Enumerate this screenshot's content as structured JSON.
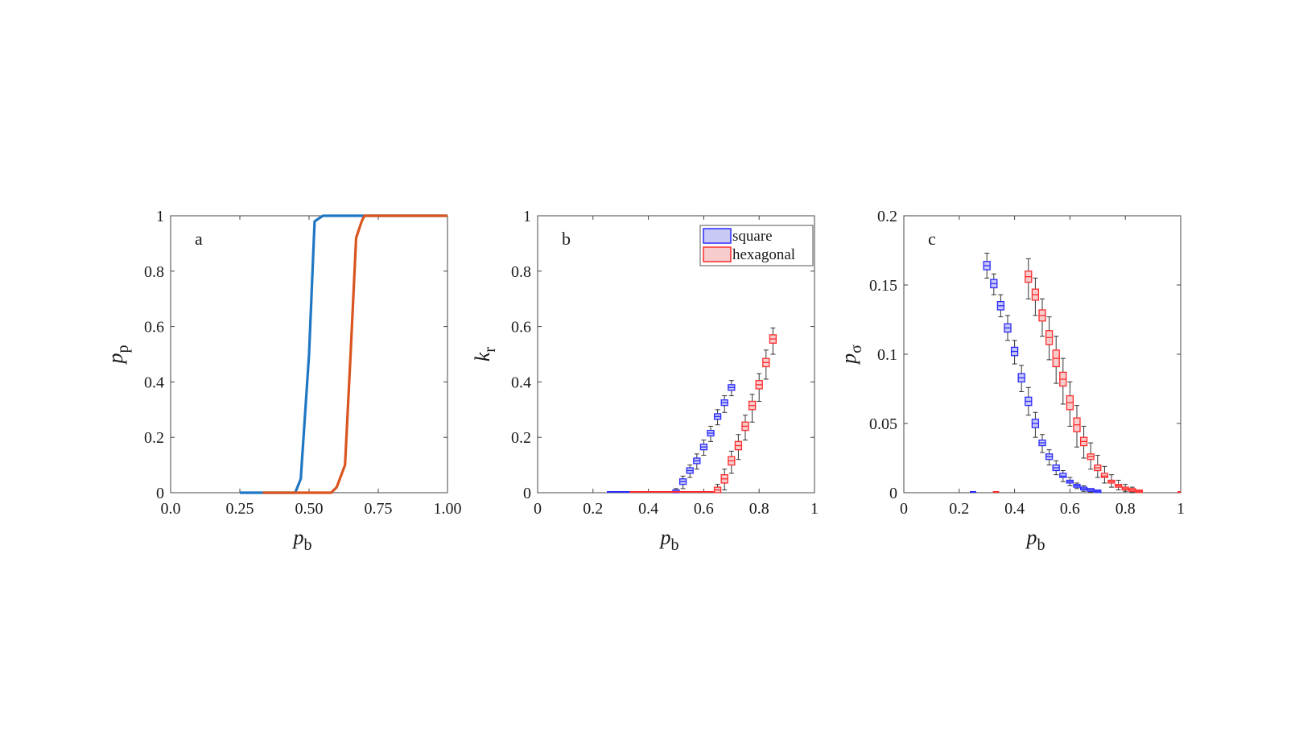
{
  "chart_data": [
    {
      "panel": "a",
      "type": "line",
      "title": "",
      "xlabel": {
        "main": "p",
        "sub": "b"
      },
      "ylabel": {
        "main": "p",
        "sub": "p"
      },
      "xlim": [
        0,
        1
      ],
      "ylim": [
        0,
        1
      ],
      "xticks": [
        0,
        0.25,
        0.5,
        0.75,
        1
      ],
      "xtick_labels": [
        "0.0",
        "0.25",
        "0.50",
        "0.75",
        "1.00"
      ],
      "yticks": [
        0,
        0.2,
        0.4,
        0.6,
        0.8,
        1
      ],
      "ytick_labels": [
        "0",
        "0.2",
        "0.4",
        "0.6",
        "0.8",
        "1"
      ],
      "grid": false,
      "series": [
        {
          "color": "#1f77c4",
          "x": [
            0.25,
            0.3,
            0.35,
            0.4,
            0.45,
            0.47,
            0.5,
            0.52,
            0.55,
            0.6,
            0.7,
            0.8,
            0.9,
            1.0
          ],
          "y": [
            0,
            0,
            0,
            0,
            0,
            0.05,
            0.5,
            0.98,
            1,
            1,
            1,
            1,
            1,
            1
          ]
        },
        {
          "color": "#d9541e",
          "x": [
            0.333,
            0.4,
            0.45,
            0.5,
            0.55,
            0.58,
            0.6,
            0.63,
            0.65,
            0.67,
            0.69,
            0.7,
            0.75,
            0.8,
            0.9,
            1.0
          ],
          "y": [
            0,
            0,
            0,
            0,
            0,
            0,
            0.02,
            0.1,
            0.5,
            0.92,
            0.98,
            1,
            1,
            1,
            1,
            1
          ]
        }
      ]
    },
    {
      "panel": "b",
      "type": "box",
      "title": "",
      "xlabel": {
        "main": "p",
        "sub": "b"
      },
      "ylabel": {
        "main": "k",
        "sub": "r"
      },
      "xlim": [
        0,
        1
      ],
      "ylim": [
        0,
        1
      ],
      "xticks": [
        0,
        0.2,
        0.4,
        0.6,
        0.8,
        1
      ],
      "xtick_labels": [
        "0",
        "0.2",
        "0.4",
        "0.6",
        "0.8",
        "1"
      ],
      "yticks": [
        0,
        0.2,
        0.4,
        0.6,
        0.8,
        1
      ],
      "ytick_labels": [
        "0",
        "0.2",
        "0.4",
        "0.6",
        "0.8",
        "1"
      ],
      "grid": false,
      "legend": {
        "position": "top-right",
        "entries": [
          "square",
          "hexagonal"
        ]
      },
      "series": [
        {
          "name": "square",
          "stroke": "#2b2bff",
          "fill": "#c9c9f5",
          "zero_range": [
            0.25,
            0.5
          ],
          "x": [
            0.5,
            0.525,
            0.55,
            0.575,
            0.6,
            0.625,
            0.65,
            0.675,
            0.7
          ],
          "median": [
            0.005,
            0.04,
            0.08,
            0.115,
            0.165,
            0.215,
            0.275,
            0.325,
            0.38
          ],
          "q1": [
            0,
            0.03,
            0.07,
            0.105,
            0.155,
            0.205,
            0.265,
            0.315,
            0.37
          ],
          "q3": [
            0.01,
            0.05,
            0.09,
            0.125,
            0.175,
            0.225,
            0.285,
            0.335,
            0.39
          ],
          "whisker_low": [
            0,
            0.015,
            0.055,
            0.085,
            0.135,
            0.185,
            0.245,
            0.29,
            0.35
          ],
          "whisker_high": [
            0.015,
            0.06,
            0.1,
            0.14,
            0.19,
            0.24,
            0.3,
            0.35,
            0.405
          ]
        },
        {
          "name": "hexagonal",
          "stroke": "#ff2b2b",
          "fill": "#f7cccc",
          "zero_range": [
            0.333,
            0.65
          ],
          "x": [
            0.65,
            0.675,
            0.7,
            0.725,
            0.75,
            0.775,
            0.8,
            0.825,
            0.85
          ],
          "median": [
            0.01,
            0.05,
            0.115,
            0.17,
            0.24,
            0.315,
            0.39,
            0.47,
            0.555
          ],
          "q1": [
            0,
            0.035,
            0.1,
            0.155,
            0.225,
            0.3,
            0.375,
            0.455,
            0.54
          ],
          "q3": [
            0.02,
            0.065,
            0.13,
            0.185,
            0.255,
            0.33,
            0.405,
            0.485,
            0.57
          ],
          "whisker_low": [
            0,
            0.01,
            0.07,
            0.12,
            0.19,
            0.255,
            0.33,
            0.41,
            0.5
          ],
          "whisker_high": [
            0.03,
            0.085,
            0.15,
            0.21,
            0.28,
            0.355,
            0.43,
            0.515,
            0.595
          ]
        }
      ]
    },
    {
      "panel": "c",
      "type": "box",
      "title": "",
      "xlabel": {
        "main": "p",
        "sub": "b"
      },
      "ylabel": {
        "main": "p",
        "sub": "σ"
      },
      "xlim": [
        0,
        1
      ],
      "ylim": [
        0,
        0.2
      ],
      "xticks": [
        0,
        0.2,
        0.4,
        0.6,
        0.8,
        1
      ],
      "xtick_labels": [
        "0",
        "0.2",
        "0.4",
        "0.6",
        "0.8",
        "1"
      ],
      "yticks": [
        0,
        0.05,
        0.1,
        0.15,
        0.2
      ],
      "ytick_labels": [
        "0",
        "0.05",
        "0.1",
        "0.15",
        "0.2"
      ],
      "grid": false,
      "series": [
        {
          "name": "square",
          "stroke": "#2b2bff",
          "fill": "#c9c9f5",
          "zero_marks": [
            0.25
          ],
          "x": [
            0.3,
            0.325,
            0.35,
            0.375,
            0.4,
            0.425,
            0.45,
            0.475,
            0.5,
            0.525,
            0.55,
            0.575,
            0.6,
            0.625,
            0.65,
            0.675,
            0.7
          ],
          "median": [
            0.164,
            0.151,
            0.135,
            0.119,
            0.102,
            0.083,
            0.066,
            0.05,
            0.036,
            0.026,
            0.018,
            0.012,
            0.008,
            0.005,
            0.003,
            0.002,
            0.001
          ],
          "q1": [
            0.161,
            0.148,
            0.132,
            0.116,
            0.099,
            0.08,
            0.063,
            0.047,
            0.034,
            0.024,
            0.016,
            0.011,
            0.007,
            0.004,
            0.002,
            0.001,
            0.0005
          ],
          "q3": [
            0.167,
            0.154,
            0.138,
            0.122,
            0.105,
            0.086,
            0.069,
            0.053,
            0.038,
            0.028,
            0.02,
            0.014,
            0.009,
            0.006,
            0.004,
            0.003,
            0.0015
          ],
          "whisker_low": [
            0.155,
            0.143,
            0.127,
            0.11,
            0.093,
            0.073,
            0.056,
            0.04,
            0.029,
            0.02,
            0.013,
            0.008,
            0.005,
            0.003,
            0.001,
            0.0005,
            0
          ],
          "whisker_high": [
            0.173,
            0.158,
            0.143,
            0.128,
            0.11,
            0.092,
            0.076,
            0.058,
            0.042,
            0.031,
            0.023,
            0.016,
            0.011,
            0.007,
            0.005,
            0.003,
            0.002
          ]
        },
        {
          "name": "hexagonal",
          "stroke": "#ff2b2b",
          "fill": "#f7cccc",
          "zero_marks": [
            0.333,
            1.0
          ],
          "x": [
            0.45,
            0.475,
            0.5,
            0.525,
            0.55,
            0.575,
            0.6,
            0.625,
            0.65,
            0.675,
            0.7,
            0.725,
            0.75,
            0.775,
            0.8,
            0.825,
            0.85
          ],
          "median": [
            0.156,
            0.143,
            0.128,
            0.112,
            0.097,
            0.082,
            0.065,
            0.049,
            0.037,
            0.026,
            0.018,
            0.012,
            0.008,
            0.005,
            0.003,
            0.002,
            0.001
          ],
          "q1": [
            0.152,
            0.139,
            0.124,
            0.107,
            0.091,
            0.077,
            0.06,
            0.044,
            0.034,
            0.024,
            0.016,
            0.011,
            0.007,
            0.004,
            0.002,
            0.001,
            0.0005
          ],
          "q3": [
            0.16,
            0.147,
            0.132,
            0.117,
            0.103,
            0.087,
            0.07,
            0.054,
            0.04,
            0.028,
            0.02,
            0.014,
            0.009,
            0.006,
            0.004,
            0.003,
            0.0015
          ],
          "whisker_low": [
            0.14,
            0.128,
            0.113,
            0.096,
            0.079,
            0.064,
            0.048,
            0.033,
            0.025,
            0.017,
            0.011,
            0.007,
            0.004,
            0.002,
            0.001,
            0.0005,
            0
          ],
          "whisker_high": [
            0.169,
            0.155,
            0.14,
            0.127,
            0.113,
            0.097,
            0.08,
            0.063,
            0.048,
            0.036,
            0.027,
            0.019,
            0.013,
            0.009,
            0.006,
            0.004,
            0.002
          ]
        }
      ]
    }
  ],
  "panel_letters": [
    "a",
    "b",
    "c"
  ]
}
